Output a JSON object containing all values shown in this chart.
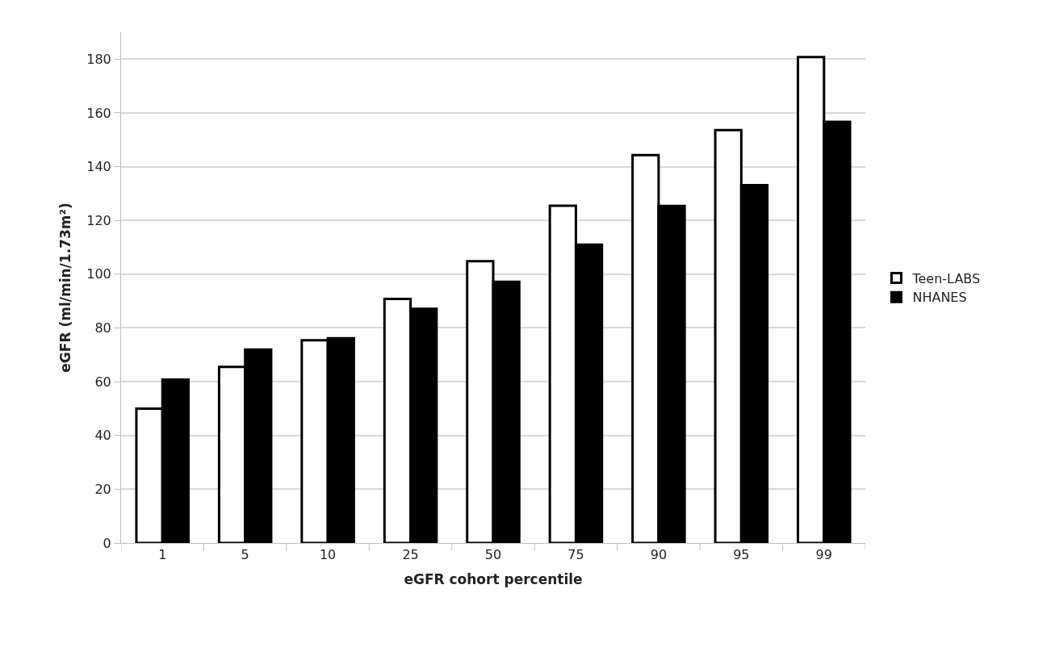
{
  "chart_data": {
    "type": "bar",
    "xlabel": "eGFR cohort percentile",
    "ylabel": "eGFR (ml/min/1.73m²)",
    "categories": [
      "1",
      "5",
      "10",
      "25",
      "50",
      "75",
      "90",
      "95",
      "99"
    ],
    "series": [
      {
        "name": "Teen-LABS",
        "color": "#ffffff",
        "values": [
          50,
          65.5,
          75.4,
          90.8,
          104.8,
          125.5,
          144.3,
          153.6,
          180.8
        ]
      },
      {
        "name": "NHANES",
        "color": "#000000",
        "values": [
          60.8,
          72,
          76.2,
          87.1,
          97.2,
          111,
          125.4,
          133.1,
          156.7
        ]
      }
    ],
    "ylim": [
      0,
      190
    ],
    "yticks": [
      0,
      20,
      40,
      60,
      80,
      100,
      120,
      140,
      160,
      180
    ],
    "grid": "y",
    "legend": "right"
  }
}
